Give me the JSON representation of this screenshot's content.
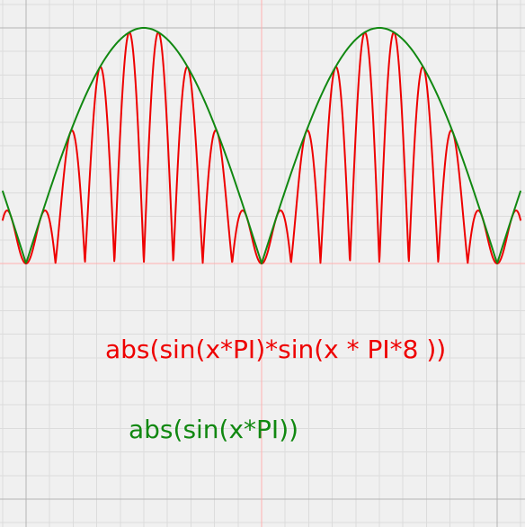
{
  "colors": {
    "background": "#f0f0f0",
    "grid_minor": "#dcdcdc",
    "grid_major": "#b4b4b4",
    "axis": "#ffb0b0",
    "series_red": "#ee0000",
    "series_green": "#118811"
  },
  "chart_data": {
    "type": "line",
    "title": "",
    "xlabel": "",
    "ylabel": "",
    "xlim": [
      -0.1,
      2.1
    ],
    "ylim": [
      -1.0,
      1.0
    ],
    "grid": true,
    "minor_grid_step": 0.1,
    "axis_lines": {
      "x_zero": 0.0,
      "y_zero": 1.0
    },
    "series": [
      {
        "expression": "abs(sin(x*PI)*sin(x * PI*8 ))",
        "color": "#ee0000",
        "samples": 1400
      },
      {
        "expression": "abs(sin(x*PI))",
        "color": "#118811",
        "samples": 400
      }
    ],
    "labels": [
      {
        "text": "abs(sin(x*PI)*sin(x * PI*8 ))",
        "color": "#ee0000",
        "x": 0.23,
        "y": -0.72
      },
      {
        "text": "abs(sin(x*PI))",
        "color": "#118811",
        "x": 0.43,
        "y": -1.38
      }
    ]
  }
}
